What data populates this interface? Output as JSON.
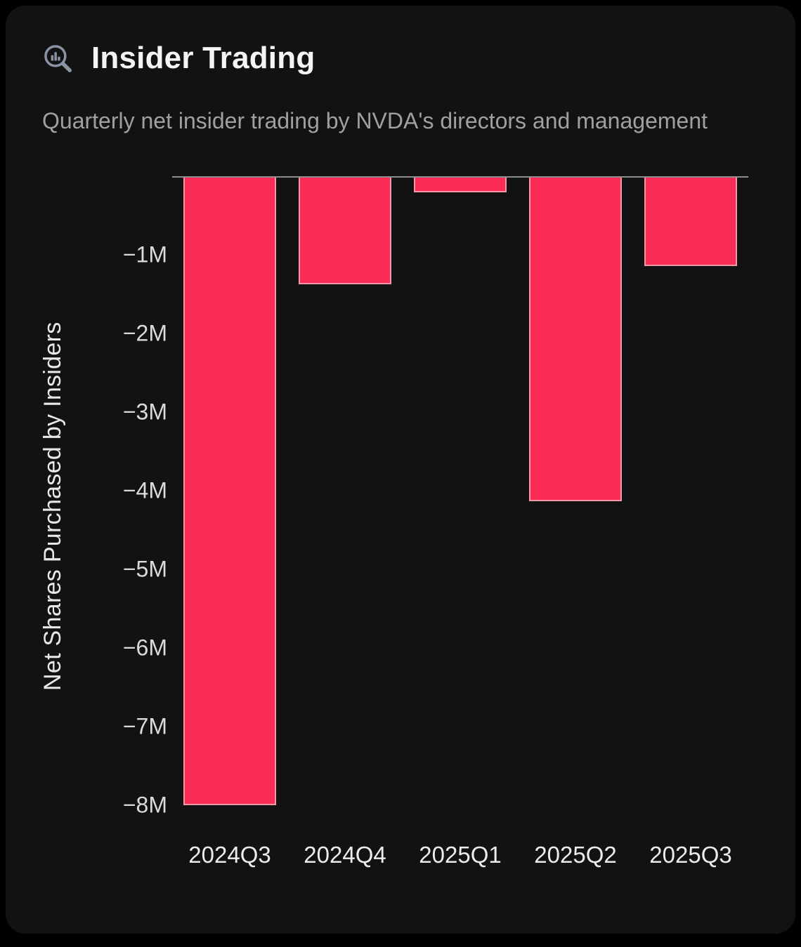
{
  "card": {
    "title": "Insider Trading",
    "subtitle": "Quarterly net insider trading by NVDA's directors and management"
  },
  "icons": {
    "header_icon": "magnifier-bar-chart-icon",
    "header_icon_color": "#8a93a4"
  },
  "chart_data": {
    "type": "bar",
    "title": "Insider Trading",
    "subtitle": "Quarterly net insider trading by NVDA's directors and management",
    "categories": [
      "2024Q3",
      "2024Q4",
      "2025Q1",
      "2025Q2",
      "2025Q3"
    ],
    "values": [
      -8000000,
      -1370000,
      -200000,
      -4130000,
      -1140000
    ],
    "series": [
      {
        "name": "Net Shares Purchased by Insiders",
        "values": [
          -8000000,
          -1370000,
          -200000,
          -4130000,
          -1140000
        ]
      }
    ],
    "xlabel": "",
    "ylabel": "Net Shares Purchased by Insiders",
    "ylim": [
      -8400000,
      0
    ],
    "yticks": [
      {
        "v": -1000000,
        "label": "−1M"
      },
      {
        "v": -2000000,
        "label": "−2M"
      },
      {
        "v": -3000000,
        "label": "−3M"
      },
      {
        "v": -4000000,
        "label": "−4M"
      },
      {
        "v": -5000000,
        "label": "−5M"
      },
      {
        "v": -6000000,
        "label": "−6M"
      },
      {
        "v": -7000000,
        "label": "−7M"
      },
      {
        "v": -8000000,
        "label": "−8M"
      }
    ],
    "grid": false,
    "legend": "none",
    "bar_color": "#fb2c55",
    "axis_line_color": "#8d8d8d",
    "background_color": "#121212"
  }
}
